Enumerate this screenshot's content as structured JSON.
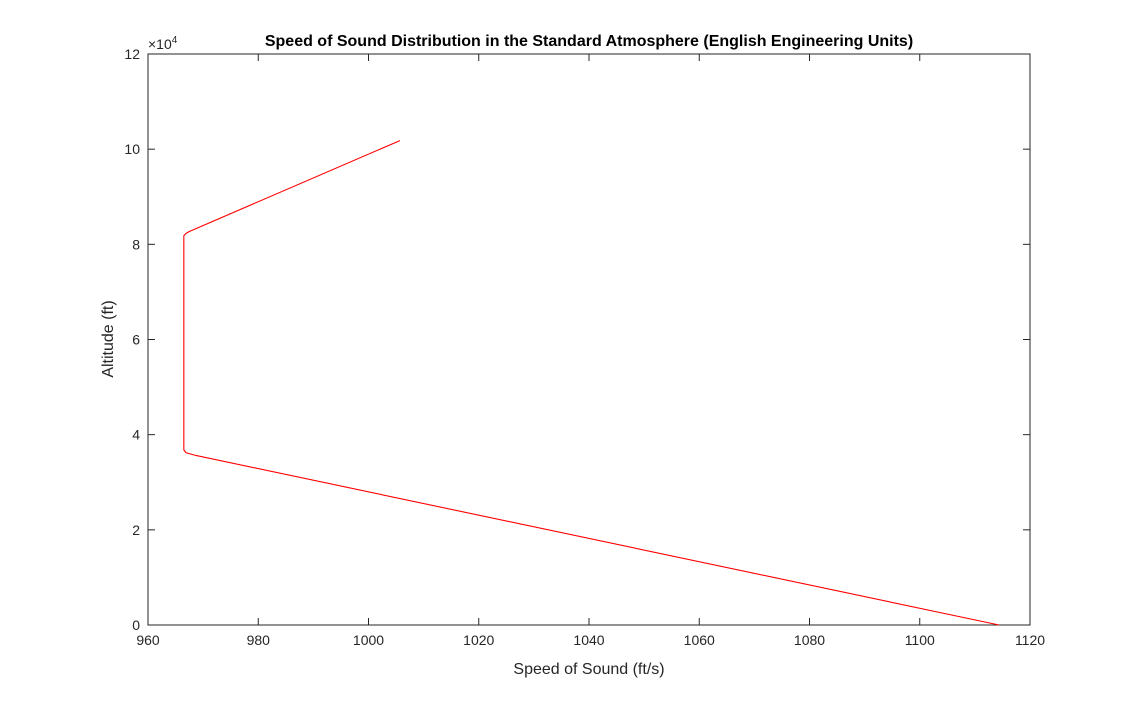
{
  "chart_data": {
    "type": "line",
    "title": "Speed of Sound Distribution in the Standard Atmosphere (English Engineering Units)",
    "xlabel": "Speed of Sound (ft/s)",
    "ylabel": "Altitude (ft)",
    "xlim": [
      960,
      1120
    ],
    "ylim": [
      0,
      120000
    ],
    "x_ticks": [
      960,
      980,
      1000,
      1020,
      1040,
      1060,
      1080,
      1100,
      1120
    ],
    "y_ticks": [
      0,
      20000,
      40000,
      60000,
      80000,
      100000,
      120000
    ],
    "y_tick_labels": [
      "0",
      "2",
      "4",
      "6",
      "8",
      "10",
      "12"
    ],
    "y_exponent": {
      "base": "×10",
      "power": "4"
    },
    "grid": false,
    "legend": "none",
    "series": [
      {
        "color": "#ff0000",
        "x": [
          1114.4,
          968.8,
          966.9,
          966.5,
          966.5,
          966.9,
          967.5,
          1005.7
        ],
        "y": [
          0,
          35600,
          36200,
          36800,
          81800,
          82300,
          82700,
          101800
        ]
      }
    ]
  }
}
